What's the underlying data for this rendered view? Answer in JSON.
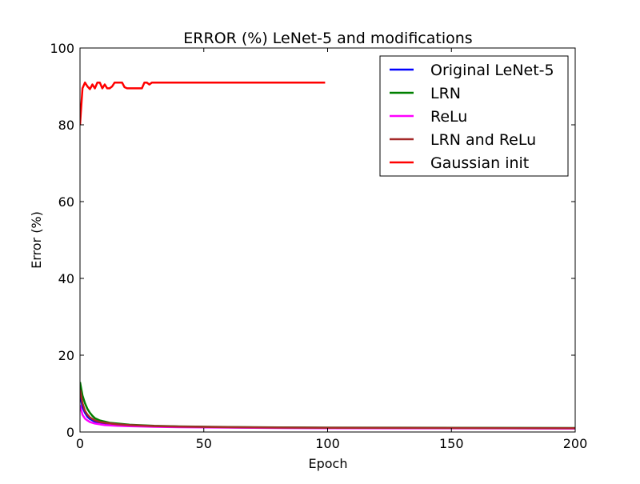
{
  "chart_data": {
    "type": "line",
    "title": "ERROR (%) LeNet-5 and modifications",
    "xlabel": "Epoch",
    "ylabel": "Error (%)",
    "xlim": [
      0,
      200
    ],
    "ylim": [
      0,
      100
    ],
    "xticks": [
      0,
      50,
      100,
      150,
      200
    ],
    "yticks": [
      0,
      20,
      40,
      60,
      80,
      100
    ],
    "grid": false,
    "legend_position": "top-right",
    "series": [
      {
        "name": "Original LeNet-5",
        "color": "#0000ff",
        "points": [
          [
            0,
            10
          ],
          [
            1,
            6.5
          ],
          [
            2,
            5
          ],
          [
            3,
            4
          ],
          [
            4,
            3.4
          ],
          [
            6,
            2.7
          ],
          [
            8,
            2.4
          ],
          [
            10,
            2.2
          ],
          [
            15,
            1.9
          ],
          [
            20,
            1.7
          ],
          [
            30,
            1.5
          ],
          [
            40,
            1.4
          ],
          [
            60,
            1.2
          ],
          [
            80,
            1.1
          ],
          [
            100,
            1.05
          ],
          [
            150,
            1.0
          ],
          [
            200,
            0.95
          ]
        ]
      },
      {
        "name": "LRN",
        "color": "#008000",
        "points": [
          [
            0,
            13
          ],
          [
            1,
            9.5
          ],
          [
            2,
            7.5
          ],
          [
            3,
            6
          ],
          [
            4,
            5
          ],
          [
            5,
            4.2
          ],
          [
            6,
            3.6
          ],
          [
            8,
            3
          ],
          [
            10,
            2.7
          ],
          [
            12,
            2.4
          ],
          [
            15,
            2.2
          ],
          [
            20,
            1.9
          ],
          [
            30,
            1.6
          ],
          [
            40,
            1.45
          ],
          [
            60,
            1.3
          ],
          [
            80,
            1.2
          ],
          [
            100,
            1.15
          ],
          [
            150,
            1.1
          ],
          [
            200,
            1.05
          ]
        ]
      },
      {
        "name": "ReLu",
        "color": "#ff00ff",
        "points": [
          [
            0,
            7
          ],
          [
            1,
            4.5
          ],
          [
            2,
            3.5
          ],
          [
            3,
            3
          ],
          [
            4,
            2.6
          ],
          [
            6,
            2.2
          ],
          [
            8,
            2
          ],
          [
            10,
            1.8
          ],
          [
            15,
            1.6
          ],
          [
            20,
            1.5
          ],
          [
            30,
            1.35
          ],
          [
            40,
            1.25
          ],
          [
            60,
            1.15
          ],
          [
            80,
            1.05
          ],
          [
            100,
            1.0
          ],
          [
            150,
            0.95
          ],
          [
            200,
            0.9
          ]
        ]
      },
      {
        "name": "LRN and ReLu",
        "color": "#a52a2a",
        "points": [
          [
            0,
            11
          ],
          [
            1,
            7.5
          ],
          [
            2,
            5.5
          ],
          [
            3,
            4.5
          ],
          [
            4,
            3.8
          ],
          [
            6,
            3
          ],
          [
            8,
            2.6
          ],
          [
            10,
            2.4
          ],
          [
            15,
            2.0
          ],
          [
            20,
            1.8
          ],
          [
            30,
            1.55
          ],
          [
            40,
            1.4
          ],
          [
            60,
            1.25
          ],
          [
            80,
            1.15
          ],
          [
            100,
            1.1
          ],
          [
            150,
            1.05
          ],
          [
            200,
            1.0
          ]
        ]
      },
      {
        "name": "Gaussian init",
        "color": "#ff0000",
        "points": [
          [
            0,
            80
          ],
          [
            1,
            89.5
          ],
          [
            2,
            91
          ],
          [
            3,
            90
          ],
          [
            4,
            89.3
          ],
          [
            5,
            90.5
          ],
          [
            6,
            89.5
          ],
          [
            7,
            91
          ],
          [
            8,
            91
          ],
          [
            9,
            89.5
          ],
          [
            10,
            90.5
          ],
          [
            11,
            89.5
          ],
          [
            12,
            89.5
          ],
          [
            13,
            90
          ],
          [
            14,
            91
          ],
          [
            15,
            91
          ],
          [
            16,
            91
          ],
          [
            17,
            91
          ],
          [
            18,
            89.8
          ],
          [
            19,
            89.5
          ],
          [
            20,
            89.5
          ],
          [
            21,
            89.5
          ],
          [
            22,
            89.5
          ],
          [
            23,
            89.5
          ],
          [
            24,
            89.5
          ],
          [
            25,
            89.5
          ],
          [
            26,
            91
          ],
          [
            27,
            91
          ],
          [
            28,
            90.5
          ],
          [
            29,
            91
          ],
          [
            30,
            91
          ],
          [
            40,
            91
          ],
          [
            50,
            91
          ],
          [
            60,
            91
          ],
          [
            70,
            91
          ],
          [
            80,
            91
          ],
          [
            90,
            91
          ],
          [
            99,
            91
          ]
        ]
      }
    ]
  }
}
